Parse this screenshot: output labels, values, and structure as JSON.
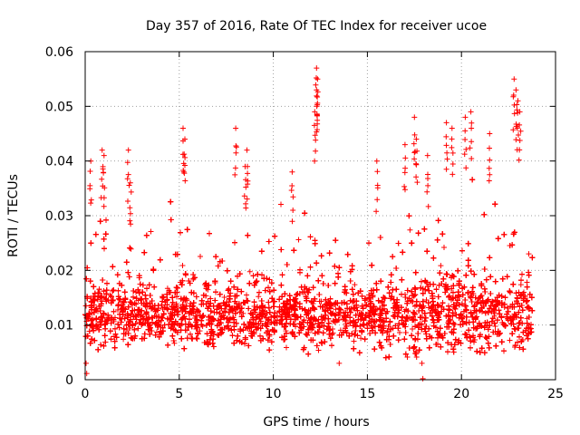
{
  "chart_data": {
    "type": "scatter",
    "title": "Day 357 of 2016, Rate Of TEC Index for receiver ucoe",
    "xlabel": "GPS time / hours",
    "ylabel": "ROTI / TECUs",
    "xlim": [
      0,
      25
    ],
    "ylim": [
      0,
      0.06
    ],
    "xticks": [
      0,
      5,
      10,
      15,
      20,
      25
    ],
    "xtick_labels": [
      "0",
      "5",
      "10",
      "15",
      "20",
      "25"
    ],
    "yticks": [
      0,
      0.01,
      0.02,
      0.03,
      0.04,
      0.05,
      0.06
    ],
    "ytick_labels": [
      "0",
      "0.01",
      "0.02",
      "0.03",
      "0.04",
      "0.05",
      "0.06"
    ],
    "grid": true,
    "marker": "+",
    "series": [
      {
        "name": "ROTI",
        "color": "#ff0000",
        "data_range_x": [
          0,
          23.8
        ],
        "bulk_range_y": [
          0.005,
          0.025
        ],
        "typical_min_y": 0.004,
        "notable_points": [
          {
            "x": 0.3,
            "y": 0.04
          },
          {
            "x": 0.9,
            "y": 0.042
          },
          {
            "x": 1.0,
            "y": 0.041
          },
          {
            "x": 2.3,
            "y": 0.042
          },
          {
            "x": 2.4,
            "y": 0.036
          },
          {
            "x": 5.2,
            "y": 0.046
          },
          {
            "x": 5.3,
            "y": 0.044
          },
          {
            "x": 8.0,
            "y": 0.046
          },
          {
            "x": 8.6,
            "y": 0.042
          },
          {
            "x": 8.5,
            "y": 0.039
          },
          {
            "x": 11.0,
            "y": 0.038
          },
          {
            "x": 12.3,
            "y": 0.057
          },
          {
            "x": 12.35,
            "y": 0.055
          },
          {
            "x": 12.3,
            "y": 0.053
          },
          {
            "x": 12.2,
            "y": 0.049
          },
          {
            "x": 15.5,
            "y": 0.04
          },
          {
            "x": 17.0,
            "y": 0.043
          },
          {
            "x": 17.5,
            "y": 0.048
          },
          {
            "x": 17.6,
            "y": 0.044
          },
          {
            "x": 18.2,
            "y": 0.041
          },
          {
            "x": 19.2,
            "y": 0.047
          },
          {
            "x": 19.5,
            "y": 0.046
          },
          {
            "x": 20.2,
            "y": 0.048
          },
          {
            "x": 20.5,
            "y": 0.049
          },
          {
            "x": 21.5,
            "y": 0.045
          },
          {
            "x": 22.8,
            "y": 0.055
          },
          {
            "x": 22.9,
            "y": 0.053
          },
          {
            "x": 23.0,
            "y": 0.051
          },
          {
            "x": 23.1,
            "y": 0.049
          },
          {
            "x": 17.9,
            "y": 0.003
          },
          {
            "x": 13.5,
            "y": 0.003
          },
          {
            "x": 0.05,
            "y": 0.003
          }
        ]
      }
    ]
  }
}
